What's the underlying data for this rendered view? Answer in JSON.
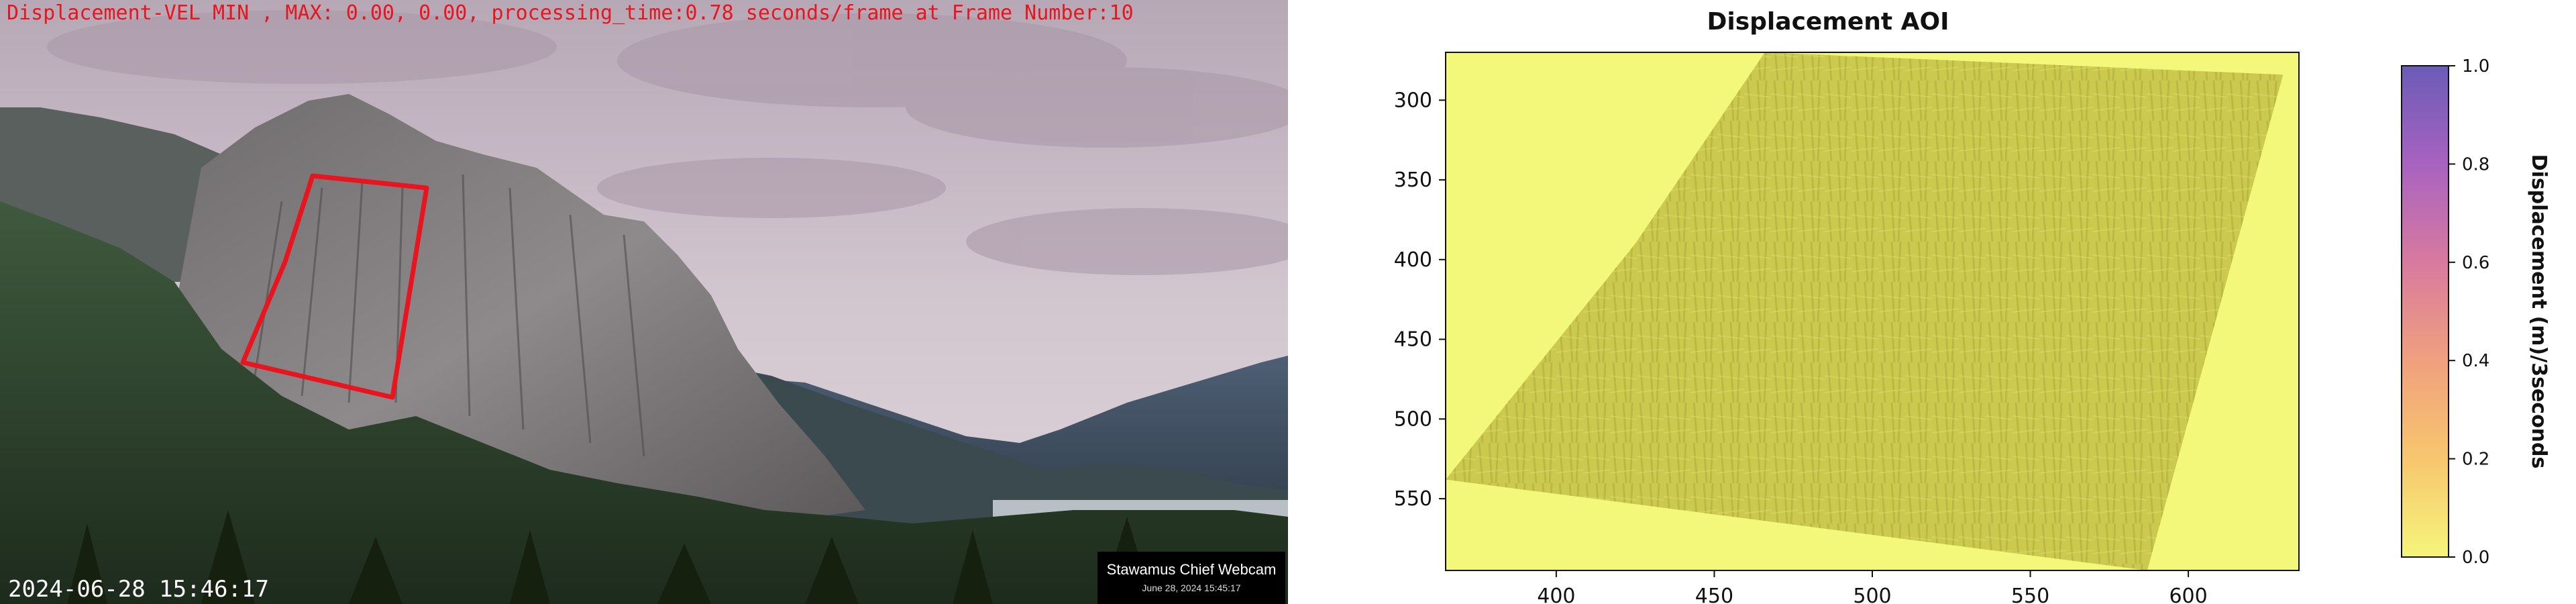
{
  "left": {
    "overlay_text": "Displacement-VEL MIN , MAX: 0.00, 0.00, processing_time:0.78 seconds/frame at Frame Number:10",
    "timestamp": "2024-06-28 15:46:17",
    "webcam_title": "Stawamus Chief Webcam",
    "webcam_date": "June 28, 2024 15:45:17",
    "overlay_color": "#e8141e",
    "aoi_outline_color": "#e8141e"
  },
  "chart_data": {
    "type": "heatmap",
    "title": "Displacement AOI",
    "xlabel": "",
    "ylabel": "",
    "x_ticks": [
      400,
      450,
      500,
      550,
      600
    ],
    "y_ticks": [
      300,
      350,
      400,
      450,
      500,
      550
    ],
    "xlim": [
      365,
      635
    ],
    "ylim": [
      595,
      270
    ],
    "colorbar": {
      "label": "Displacement (m)/3seconds",
      "ticks": [
        "0.0",
        "0.2",
        "0.4",
        "0.6",
        "0.8",
        "1.0"
      ],
      "range": [
        0.0,
        1.0
      ],
      "colors": [
        "#f5f57a",
        "#f7c66e",
        "#f0a07e",
        "#d87aa0",
        "#a862c0",
        "#6a5cb8"
      ]
    },
    "displacement_min": 0.0,
    "displacement_max": 0.0,
    "background_color": "#f4f87a",
    "aoi_color": "#c9c84c"
  }
}
